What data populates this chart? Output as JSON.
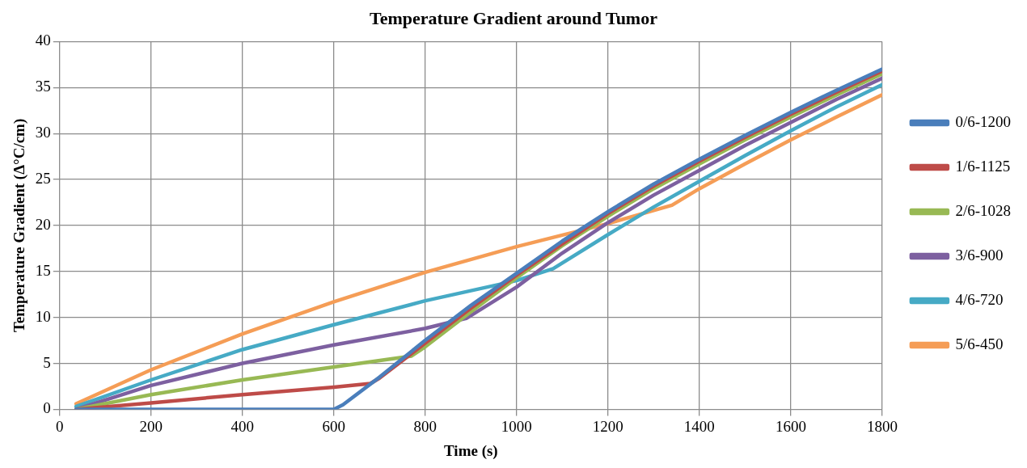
{
  "chart_data": {
    "type": "line",
    "title": "Temperature Gradient around Tumor",
    "xlabel": "Time (s)",
    "ylabel": "Temperature Gradient (Δ°C/cm)",
    "xlim": [
      0,
      1800
    ],
    "xticks": [
      0,
      200,
      400,
      600,
      800,
      1000,
      1200,
      1400,
      1600,
      1800
    ],
    "ylim": [
      0,
      40
    ],
    "yticks": [
      0,
      5,
      10,
      15,
      20,
      25,
      30,
      35,
      40
    ],
    "grid": true,
    "legend": "right",
    "marker": "none",
    "line_style": "solid",
    "series": [
      {
        "name": "0/6-1200",
        "color": "#4a7ebb",
        "x": [
          36,
          200,
          400,
          600,
          620,
          700,
          800,
          900,
          1000,
          1100,
          1200,
          1300,
          1400,
          1500,
          1600,
          1700,
          1800
        ],
        "values": [
          0,
          0,
          0,
          0,
          0.5,
          3.5,
          7.5,
          11.3,
          14.8,
          18.3,
          21.5,
          24.5,
          27.2,
          29.8,
          32.3,
          34.7,
          37
        ]
      },
      {
        "name": "1/6-1125",
        "color": "#be4b48",
        "x": [
          36,
          200,
          400,
          600,
          680,
          700,
          800,
          900,
          1000,
          1100,
          1200,
          1300,
          1400,
          1500,
          1600,
          1700,
          1800
        ],
        "values": [
          0,
          0.7,
          1.6,
          2.4,
          2.8,
          3.4,
          7.2,
          11,
          14.6,
          18,
          21.3,
          24.3,
          27,
          29.6,
          32.1,
          34.5,
          36.8
        ]
      },
      {
        "name": "2/6-1028",
        "color": "#98b954",
        "x": [
          36,
          200,
          400,
          600,
          770,
          800,
          900,
          1000,
          1100,
          1200,
          1300,
          1400,
          1500,
          1600,
          1700,
          1800
        ],
        "values": [
          0,
          1.6,
          3.2,
          4.6,
          5.8,
          6.8,
          10.6,
          14.3,
          17.8,
          21,
          24,
          26.7,
          29.3,
          31.8,
          34.2,
          36.5
        ]
      },
      {
        "name": "3/6-900",
        "color": "#7d60a0",
        "x": [
          36,
          200,
          400,
          600,
          800,
          890,
          1000,
          1100,
          1200,
          1300,
          1400,
          1500,
          1600,
          1700,
          1800
        ],
        "values": [
          0,
          2.6,
          5,
          7,
          8.8,
          9.9,
          13.3,
          17,
          20.3,
          23.3,
          26,
          28.7,
          31.2,
          33.7,
          36
        ]
      },
      {
        "name": "4/6-720",
        "color": "#46aac5",
        "x": [
          36,
          200,
          400,
          600,
          800,
          1000,
          1080,
          1200,
          1300,
          1400,
          1500,
          1600,
          1700,
          1800
        ],
        "values": [
          0.3,
          3.2,
          6.5,
          9.2,
          11.8,
          14,
          15.3,
          19,
          22,
          24.8,
          27.6,
          30.3,
          32.9,
          35.3
        ]
      },
      {
        "name": "5/6-450",
        "color": "#f59d56",
        "x": [
          36,
          200,
          400,
          600,
          800,
          1000,
          1200,
          1340,
          1400,
          1500,
          1600,
          1700,
          1800
        ],
        "values": [
          0.6,
          4.3,
          8.2,
          11.7,
          14.9,
          17.7,
          20.2,
          22.2,
          24,
          26.7,
          29.3,
          31.8,
          34.2
        ]
      }
    ]
  }
}
